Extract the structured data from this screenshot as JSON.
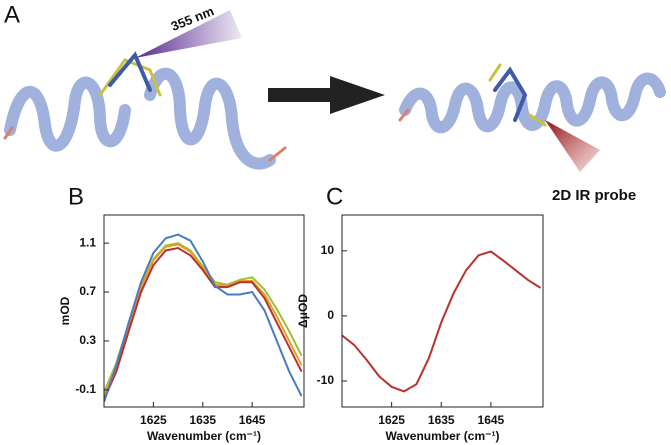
{
  "panels": {
    "a": "A",
    "b": "B",
    "c": "C"
  },
  "illustration": {
    "laser_label": "355 nm",
    "probe_label": "2D IR probe"
  },
  "chart_data": [
    {
      "type": "line",
      "x_label": "Wavenumber (cm⁻¹)",
      "y_label": "mOD",
      "x": [
        1615,
        1617.5,
        1620,
        1622.5,
        1625,
        1627.5,
        1630,
        1632.5,
        1635,
        1637.5,
        1640,
        1642.5,
        1645,
        1647.5,
        1650,
        1652.5,
        1655
      ],
      "xlim": [
        1615,
        1655.5
      ],
      "xticks": [
        1625,
        1635,
        1645
      ],
      "ylim": [
        -0.24,
        1.33
      ],
      "yticks": [
        -0.1,
        0.3,
        0.7,
        1.1
      ],
      "series": [
        {
          "color": "#9cbf3a",
          "values": [
            -0.12,
            0.12,
            0.44,
            0.75,
            0.97,
            1.08,
            1.1,
            1.04,
            0.91,
            0.78,
            0.76,
            0.8,
            0.82,
            0.72,
            0.56,
            0.38,
            0.18
          ]
        },
        {
          "color": "#e0a020",
          "values": [
            -0.15,
            0.1,
            0.42,
            0.74,
            0.96,
            1.07,
            1.09,
            1.03,
            0.9,
            0.76,
            0.75,
            0.79,
            0.79,
            0.68,
            0.5,
            0.3,
            0.1
          ]
        },
        {
          "color": "#b8332e",
          "values": [
            -0.18,
            0.05,
            0.38,
            0.7,
            0.92,
            1.04,
            1.06,
            1.0,
            0.88,
            0.74,
            0.74,
            0.78,
            0.78,
            0.65,
            0.45,
            0.25,
            0.05
          ]
        },
        {
          "color": "#4a7cc0",
          "values": [
            -0.2,
            0.1,
            0.45,
            0.78,
            1.02,
            1.14,
            1.17,
            1.12,
            0.95,
            0.75,
            0.68,
            0.68,
            0.7,
            0.55,
            0.3,
            0.05,
            -0.15
          ]
        }
      ]
    },
    {
      "type": "line",
      "x_label": "Wavenumber (cm⁻¹)",
      "y_label": "ΔμOD",
      "x": [
        1615,
        1617.5,
        1620,
        1622.5,
        1625,
        1627.5,
        1630,
        1632.5,
        1635,
        1637.5,
        1640,
        1642.5,
        1645,
        1647.5,
        1650,
        1652.5,
        1655
      ],
      "xlim": [
        1615,
        1655.5
      ],
      "xticks": [
        1625,
        1635,
        1645
      ],
      "ylim": [
        -14,
        15.5
      ],
      "yticks": [
        -10,
        0,
        10
      ],
      "series": [
        {
          "color": "#b8332e",
          "values": [
            -3,
            -4.5,
            -6.8,
            -9.3,
            -10.9,
            -11.6,
            -10.5,
            -6.5,
            -1,
            3.5,
            7,
            9.3,
            9.9,
            8.5,
            7,
            5.5,
            4.3
          ]
        }
      ]
    }
  ]
}
